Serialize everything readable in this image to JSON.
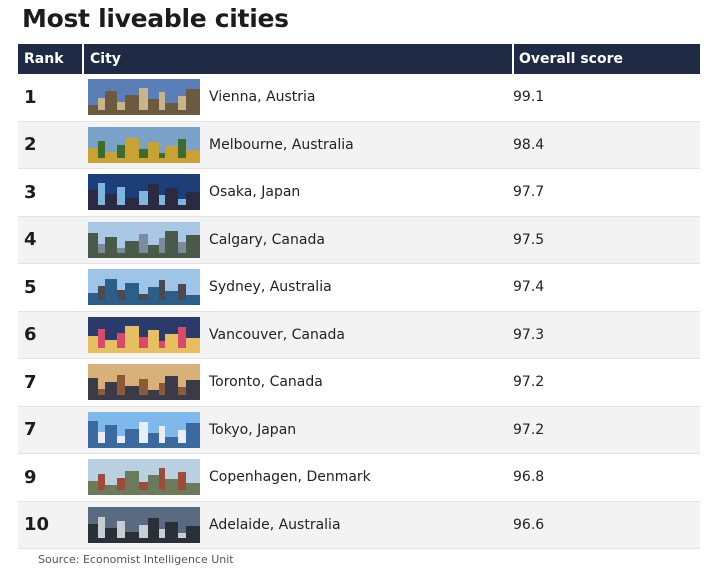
{
  "header": {
    "title": "Most liveable cities"
  },
  "table": {
    "columns": {
      "rank": "Rank",
      "city": "City",
      "score": "Overall score"
    }
  },
  "chart_data": {
    "type": "table",
    "title": "Most liveable cities",
    "columns": [
      "Rank",
      "City",
      "Overall score"
    ],
    "rows": [
      {
        "rank": "1",
        "city": "Vienna, Austria",
        "score": "99.1"
      },
      {
        "rank": "2",
        "city": "Melbourne, Australia",
        "score": "98.4"
      },
      {
        "rank": "3",
        "city": "Osaka, Japan",
        "score": "97.7"
      },
      {
        "rank": "4",
        "city": "Calgary, Canada",
        "score": "97.5"
      },
      {
        "rank": "5",
        "city": "Sydney, Australia",
        "score": "97.4"
      },
      {
        "rank": "6",
        "city": "Vancouver, Canada",
        "score": "97.3"
      },
      {
        "rank": "7",
        "city": "Toronto, Canada",
        "score": "97.2"
      },
      {
        "rank": "7",
        "city": "Tokyo, Japan",
        "score": "97.2"
      },
      {
        "rank": "9",
        "city": "Copenhagen, Denmark",
        "score": "96.8"
      },
      {
        "rank": "10",
        "city": "Adelaide, Australia",
        "score": "96.6"
      }
    ]
  },
  "footer": {
    "source": "Source: Economist Intelligence Unit"
  },
  "thumb_palettes": [
    [
      "#5a7fb8",
      "#c9b48a",
      "#6b5a3e"
    ],
    [
      "#7aa2c9",
      "#3f6b2e",
      "#c8a233"
    ],
    [
      "#1c3f7a",
      "#7fb6e0",
      "#2a2a40"
    ],
    [
      "#a8c8e6",
      "#7c8c9a",
      "#4a5a48"
    ],
    [
      "#9ec4e8",
      "#4a4a52",
      "#2c5e8a"
    ],
    [
      "#2a3a6a",
      "#d94a6a",
      "#e6c060"
    ],
    [
      "#d8b07a",
      "#8a5a3a",
      "#3a3a48"
    ],
    [
      "#7fb8ea",
      "#e8eef6",
      "#3a6aa0"
    ],
    [
      "#b8d0e0",
      "#a04a3a",
      "#6a7a5a"
    ],
    [
      "#5a6a80",
      "#c8ccd4",
      "#2a3038"
    ]
  ]
}
